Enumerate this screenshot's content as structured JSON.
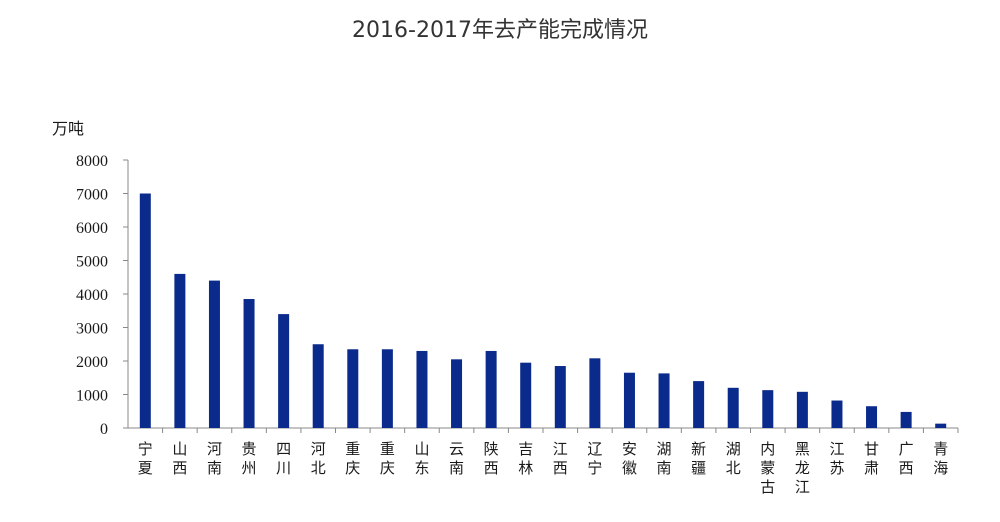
{
  "chart_data": {
    "type": "bar",
    "title": "2016-2017年去产能完成情况",
    "ylabel": "万吨",
    "xlabel": "",
    "ylim": [
      0,
      8000
    ],
    "yticks": [
      0,
      1000,
      2000,
      3000,
      4000,
      5000,
      6000,
      7000,
      8000
    ],
    "categories": [
      "宁夏",
      "山西",
      "河南",
      "贵州",
      "四川",
      "河北",
      "重庆",
      "重庆",
      "山东",
      "云南",
      "陕西",
      "吉林",
      "江西",
      "辽宁",
      "安徽",
      "湖南",
      "新疆",
      "湖北",
      "内蒙古",
      "黑龙江",
      "江苏",
      "甘肃",
      "广西",
      "青海"
    ],
    "values": [
      7000,
      4600,
      4400,
      3850,
      3400,
      2500,
      2350,
      2350,
      2300,
      2050,
      2300,
      1950,
      1850,
      2080,
      1650,
      1630,
      1400,
      1200,
      1130,
      1080,
      820,
      650,
      480,
      130
    ],
    "bar_color": "#0a2a8c",
    "grid": false
  }
}
